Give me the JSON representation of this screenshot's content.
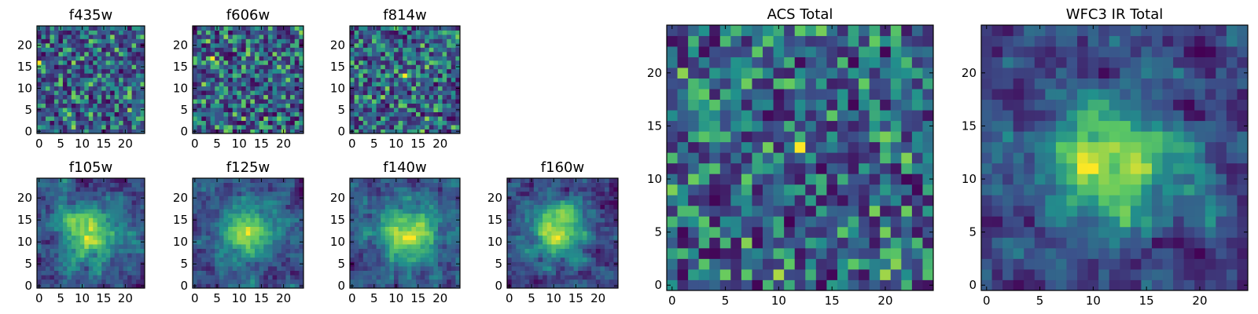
{
  "figure": {
    "background": "#ffffff",
    "colormap": "viridis",
    "colormap_stops": [
      "#440154",
      "#3b528b",
      "#21918c",
      "#5ec962",
      "#fde725"
    ]
  },
  "chart_data": [
    {
      "type": "heatmap",
      "title": "f435w",
      "grid_size": 25,
      "xlim": [
        0,
        24
      ],
      "ylim": [
        0,
        24
      ],
      "x_ticks": [
        "0",
        "5",
        "10",
        "15",
        "20"
      ],
      "y_ticks": [
        "0",
        "5",
        "10",
        "15",
        "20"
      ],
      "xlabel": "",
      "ylabel": "",
      "pattern": "noise",
      "seed": 11,
      "bright_spot": [
        0,
        16
      ]
    },
    {
      "type": "heatmap",
      "title": "f606w",
      "grid_size": 25,
      "xlim": [
        0,
        24
      ],
      "ylim": [
        0,
        24
      ],
      "x_ticks": [
        "0",
        "5",
        "10",
        "15",
        "20"
      ],
      "y_ticks": [
        "0",
        "5",
        "10",
        "15",
        "20"
      ],
      "xlabel": "",
      "ylabel": "",
      "pattern": "noise",
      "seed": 23,
      "bright_spot": [
        4,
        17
      ]
    },
    {
      "type": "heatmap",
      "title": "f814w",
      "grid_size": 25,
      "xlim": [
        0,
        24
      ],
      "ylim": [
        0,
        24
      ],
      "x_ticks": [
        "0",
        "5",
        "10",
        "15",
        "20"
      ],
      "y_ticks": [
        "0",
        "5",
        "10",
        "15",
        "20"
      ],
      "xlabel": "",
      "ylabel": "",
      "pattern": "noise",
      "seed": 37,
      "bright_spot": [
        12,
        13
      ]
    },
    {
      "type": "heatmap",
      "title": "f105w",
      "grid_size": 25,
      "xlim": [
        0,
        24
      ],
      "ylim": [
        0,
        24
      ],
      "x_ticks": [
        "0",
        "5",
        "10",
        "15",
        "20"
      ],
      "y_ticks": [
        "0",
        "5",
        "10",
        "15",
        "20"
      ],
      "xlabel": "",
      "ylabel": "",
      "pattern": "smooth",
      "seed": 41,
      "center": [
        12,
        12
      ]
    },
    {
      "type": "heatmap",
      "title": "f125w",
      "grid_size": 25,
      "xlim": [
        0,
        24
      ],
      "ylim": [
        0,
        24
      ],
      "x_ticks": [
        "0",
        "5",
        "10",
        "15",
        "20"
      ],
      "y_ticks": [
        "0",
        "5",
        "10",
        "15",
        "20"
      ],
      "xlabel": "",
      "ylabel": "",
      "pattern": "smooth",
      "seed": 53,
      "center": [
        12,
        12
      ]
    },
    {
      "type": "heatmap",
      "title": "f140w",
      "grid_size": 25,
      "xlim": [
        0,
        24
      ],
      "ylim": [
        0,
        24
      ],
      "x_ticks": [
        "0",
        "5",
        "10",
        "15",
        "20"
      ],
      "y_ticks": [
        "0",
        "5",
        "10",
        "15",
        "20"
      ],
      "xlabel": "",
      "ylabel": "",
      "pattern": "smooth",
      "seed": 67,
      "center": [
        13,
        12
      ]
    },
    {
      "type": "heatmap",
      "title": "f160w",
      "grid_size": 25,
      "xlim": [
        0,
        24
      ],
      "ylim": [
        0,
        24
      ],
      "x_ticks": [
        "0",
        "5",
        "10",
        "15",
        "20"
      ],
      "y_ticks": [
        "0",
        "5",
        "10",
        "15",
        "20"
      ],
      "xlabel": "",
      "ylabel": "",
      "pattern": "smooth",
      "seed": 71,
      "center": [
        11,
        13
      ]
    },
    {
      "type": "heatmap",
      "title": "ACS Total",
      "grid_size": 25,
      "xlim": [
        0,
        24
      ],
      "ylim": [
        0,
        24
      ],
      "x_ticks": [
        "0",
        "5",
        "10",
        "15",
        "20"
      ],
      "y_ticks": [
        "0",
        "5",
        "10",
        "15",
        "20"
      ],
      "xlabel": "",
      "ylabel": "",
      "pattern": "noise",
      "seed": 83,
      "bright_spot": [
        12,
        13
      ]
    },
    {
      "type": "heatmap",
      "title": "WFC3 IR Total",
      "grid_size": 25,
      "xlim": [
        0,
        24
      ],
      "ylim": [
        0,
        24
      ],
      "x_ticks": [
        "0",
        "5",
        "10",
        "15",
        "20"
      ],
      "y_ticks": [
        "0",
        "5",
        "10",
        "15",
        "20"
      ],
      "xlabel": "",
      "ylabel": "",
      "pattern": "smooth",
      "seed": 97,
      "center": [
        12,
        12
      ]
    }
  ]
}
